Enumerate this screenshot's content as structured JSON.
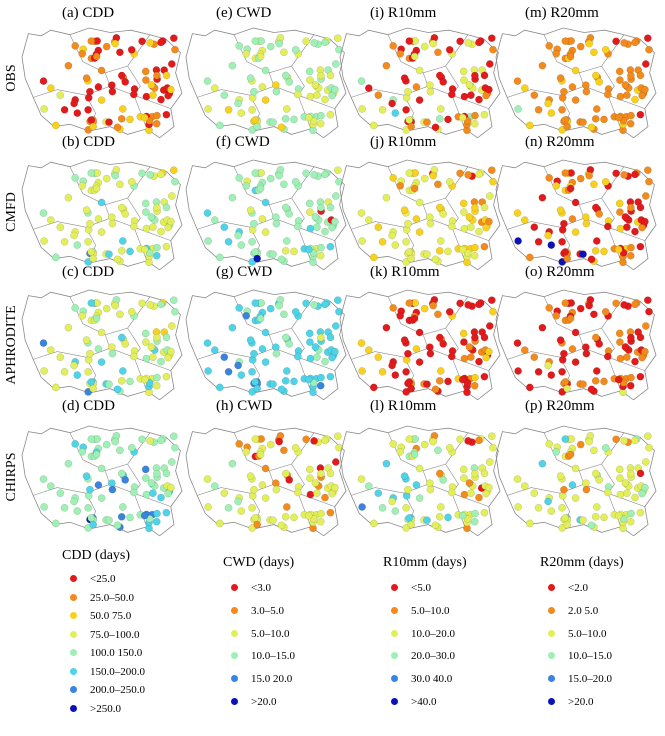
{
  "rows": [
    {
      "label": "OBS"
    },
    {
      "label": "CMFD"
    },
    {
      "label": "APHRODITE"
    },
    {
      "label": "CHIRPS"
    }
  ],
  "panels": [
    {
      "title": "(a) CDD",
      "row": 0,
      "col": 0,
      "palette": [
        0,
        1,
        2,
        3
      ],
      "dominant": 0
    },
    {
      "title": "(e) CWD",
      "row": 0,
      "col": 1,
      "palette": [
        3,
        4,
        2
      ],
      "dominant": 3
    },
    {
      "title": "(i) R10mm",
      "row": 0,
      "col": 2,
      "palette": [
        0,
        1,
        3,
        4,
        5
      ],
      "dominant": 0
    },
    {
      "title": "(m) R20mm",
      "row": 0,
      "col": 3,
      "palette": [
        0,
        1,
        2,
        4
      ],
      "dominant": 1
    },
    {
      "title": "(b) CDD",
      "row": 1,
      "col": 0,
      "palette": [
        2,
        3,
        4,
        5,
        6
      ],
      "dominant": 3
    },
    {
      "title": "(f) CWD",
      "row": 1,
      "col": 1,
      "palette": [
        0,
        3,
        4,
        5,
        7
      ],
      "dominant": 4
    },
    {
      "title": "(j) R10mm",
      "row": 1,
      "col": 2,
      "palette": [
        0,
        1,
        2,
        3,
        4
      ],
      "dominant": 3
    },
    {
      "title": "(n) R20mm",
      "row": 1,
      "col": 3,
      "palette": [
        0,
        1,
        2,
        7
      ],
      "dominant": 0
    },
    {
      "title": "(c) CDD",
      "row": 2,
      "col": 0,
      "palette": [
        2,
        3,
        4,
        5,
        6
      ],
      "dominant": 3
    },
    {
      "title": "(g) CWD",
      "row": 2,
      "col": 1,
      "palette": [
        3,
        4,
        5,
        6,
        7
      ],
      "dominant": 5
    },
    {
      "title": "(k) R10mm",
      "row": 2,
      "col": 2,
      "palette": [
        0,
        1,
        2,
        3
      ],
      "dominant": 0
    },
    {
      "title": "(o) R20mm",
      "row": 2,
      "col": 3,
      "palette": [
        0,
        1,
        3
      ],
      "dominant": 0
    },
    {
      "title": "(d) CDD",
      "row": 3,
      "col": 0,
      "palette": [
        3,
        4,
        5,
        6,
        7
      ],
      "dominant": 4
    },
    {
      "title": "(h) CWD",
      "row": 3,
      "col": 1,
      "palette": [
        0,
        1,
        3,
        4
      ],
      "dominant": 3
    },
    {
      "title": "(l) R10mm",
      "row": 3,
      "col": 2,
      "palette": [
        0,
        1,
        3,
        4,
        5,
        6
      ],
      "dominant": 3
    },
    {
      "title": "(p) R20mm",
      "row": 3,
      "col": 3,
      "palette": [
        0,
        1,
        3,
        4,
        5,
        6
      ],
      "dominant": 3
    }
  ],
  "legends": [
    {
      "title": "CDD (days)",
      "items": [
        "<25.0",
        "25.0–50.0",
        "50.0  75.0",
        "75.0–100.0",
        "100.0  150.0",
        "150.0–200.0",
        "200.0–250.0",
        ">250.0"
      ]
    },
    {
      "title": "CWD (days)",
      "items": [
        "<3.0",
        "3.0–5.0",
        "5.0–10.0",
        "10.0–15.0",
        "15.0  20.0",
        ">20.0"
      ]
    },
    {
      "title": "R10mm (days)",
      "items": [
        "<5.0",
        "5.0–10.0",
        "10.0–20.0",
        "20.0–30.0",
        "30.0  40.0",
        ">40.0"
      ]
    },
    {
      "title": "R20mm (days)",
      "items": [
        "<2.0",
        "2.0  5.0",
        "5.0–10.0",
        "10.0–15.0",
        "15.0–20.0",
        ">20.0"
      ]
    }
  ],
  "colors": {
    "cdd": [
      "#e31a1c",
      "#f28a1c",
      "#f7d11e",
      "#e3ef5a",
      "#9ff0b5",
      "#4fd3e6",
      "#3a83df",
      "#0a12b8"
    ],
    "six": [
      "#e31a1c",
      "#f28a1c",
      "#e3ef5a",
      "#9ff0b5",
      "#3a83df",
      "#0a12b8"
    ],
    "station": [
      "#e31a1c",
      "#f28a1c",
      "#f7d11e",
      "#e3ef5a",
      "#9ff0b5",
      "#4fd3e6",
      "#3a83df",
      "#0a12b8"
    ],
    "outline": "#8a8a8a"
  }
}
